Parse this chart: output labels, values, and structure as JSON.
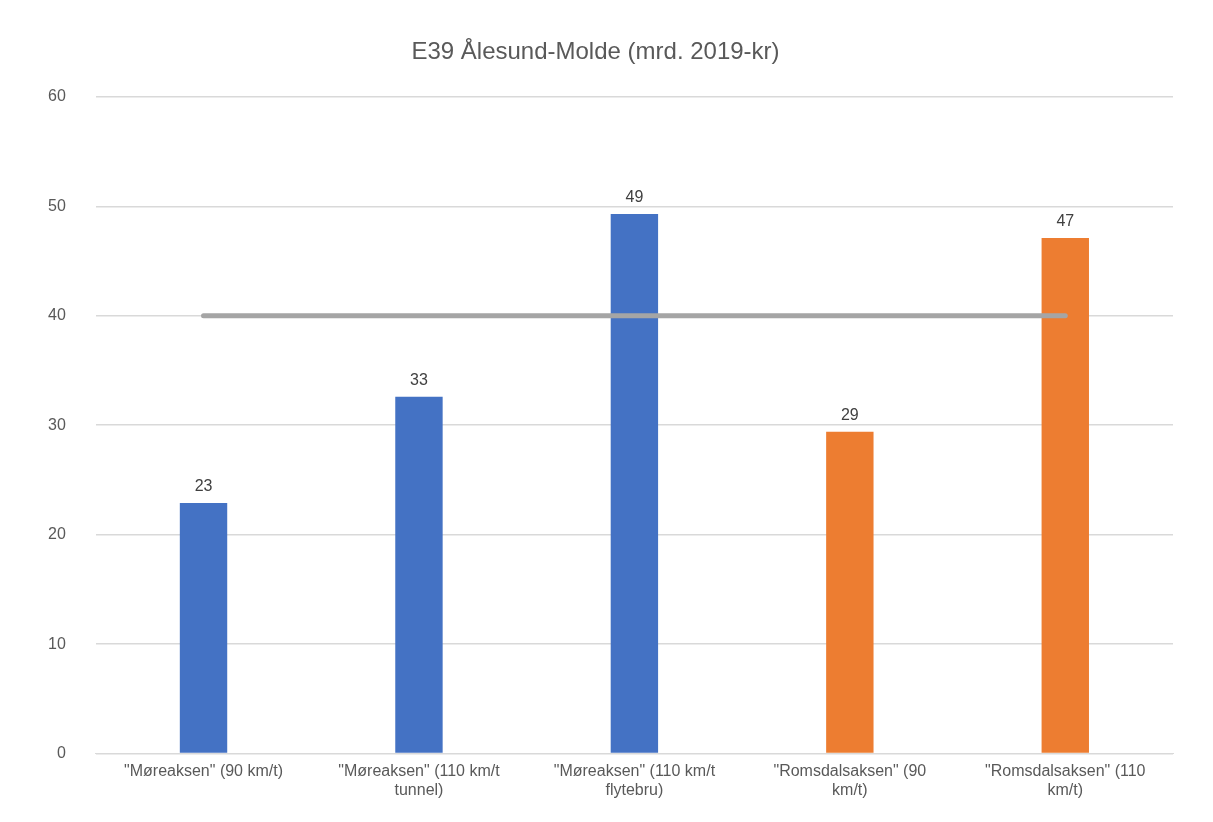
{
  "chart_data": {
    "type": "bar",
    "title": "E39 Ålesund-Molde (mrd. 2019-kr)",
    "categories": [
      "\"Møreaksen\" (90 km/t)",
      "\"Møreaksen\" (110 km/t tunnel)",
      "\"Møreaksen\" (110 km/t flytebru)",
      "\"Romsdalsaksen\" (90 km/t)",
      "\"Romsdalsaksen\" (110 km/t)"
    ],
    "series": [
      {
        "values": [
          22.9,
          32.6,
          49.3,
          29.4,
          47.1
        ],
        "colors": [
          "#4472c4",
          "#4472c4",
          "#4472c4",
          "#ed7d31",
          "#ed7d31"
        ],
        "value_labels": [
          "23",
          "33",
          "49",
          "29",
          "47"
        ]
      },
      {
        "type": "line",
        "color": "#a5a5a5",
        "values": [
          40,
          40,
          40,
          40,
          40
        ]
      }
    ],
    "ylim": [
      0,
      60
    ],
    "yticks": [
      0,
      10,
      20,
      30,
      40,
      50,
      60
    ],
    "grid": "y",
    "legend": false,
    "marker": "none"
  }
}
